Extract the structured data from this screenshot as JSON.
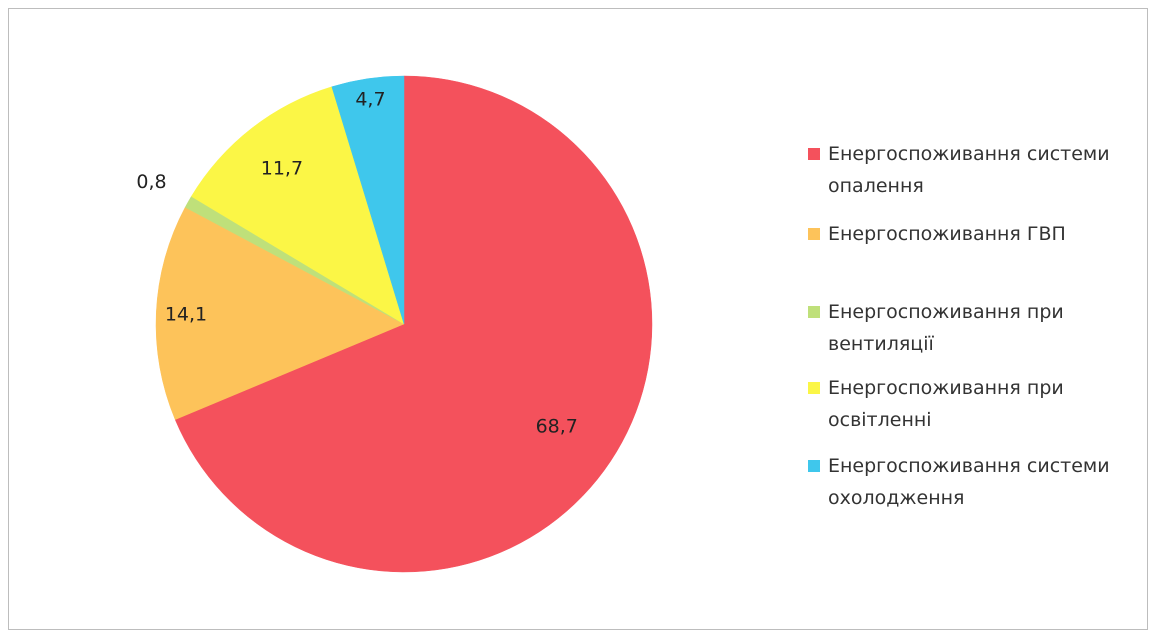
{
  "chart_data": {
    "type": "pie",
    "title": "",
    "legend_position": "right",
    "slices": [
      {
        "label": "Енергоспоживання системи опалення",
        "value": 68.7,
        "value_label": "68,7",
        "color": "#f4515c"
      },
      {
        "label": "Енергоспоживання ГВП",
        "value": 14.1,
        "value_label": "14,1",
        "color": "#fdc35a"
      },
      {
        "label": "Енергоспоживання при вентиляції",
        "value": 0.8,
        "value_label": "0,8",
        "color": "#bfe07a"
      },
      {
        "label": "Енергоспоживання при освітленні",
        "value": 11.7,
        "value_label": "11,7",
        "color": "#fbf646"
      },
      {
        "label": "Енергоспоживання системи охолодження",
        "value": 4.7,
        "value_label": "4,7",
        "color": "#3fc7ec"
      }
    ]
  }
}
